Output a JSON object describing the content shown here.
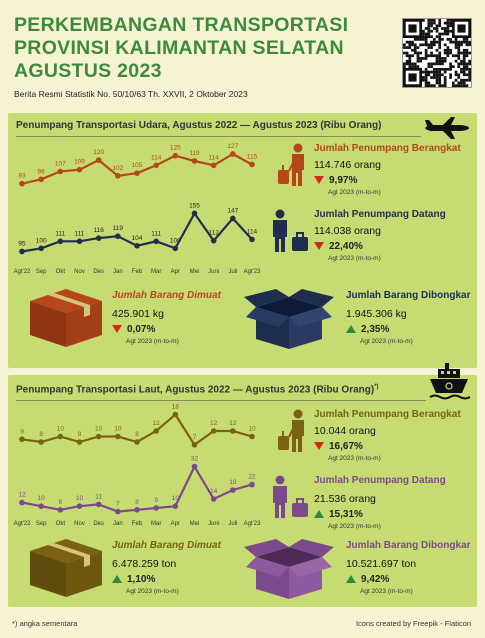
{
  "header": {
    "title_lines": [
      "PERKEMBANGAN TRANSPORTASI",
      "PROVINSI KALIMANTAN SELATAN",
      "AGUSTUS 2023"
    ],
    "subtitle": "Berita Resmi Statistik No. 50/10/63 Th. XXVII, 2 Oktober 2023"
  },
  "colors": {
    "title_green": "#3d8a3a",
    "panel_bg": "#c6dc73",
    "air_departure": "#b5471a",
    "air_arrival": "#1f2d50",
    "sea_departure": "#7a6212",
    "sea_arrival": "#7c4a8c",
    "down_red": "#d12a1a",
    "up_green": "#2f8a3a"
  },
  "air": {
    "title": "Penumpang Transportasi Udara, Agustus 2022 — Agustus 2023 (Ribu Orang)",
    "icon": "airplane-icon",
    "departure": {
      "label": "Jumlah Penumpang Berangkat",
      "value": "114.746 orang",
      "pct": "9,97%",
      "direction": "down",
      "note": "Agt 2023 (m-to-m)",
      "icon": "traveler-luggage-icon"
    },
    "arrival": {
      "label": "Jumlah Penumpang Datang",
      "value": "114.038 orang",
      "pct": "22,40%",
      "direction": "down",
      "note": "Agt 2023 (m-to-m)",
      "icon": "businessman-suitcase-icon"
    },
    "goods_loaded": {
      "label": "Jumlah Barang Dimuat",
      "value": "425.901 kg",
      "pct": "0,07%",
      "direction": "down",
      "note": "Agt 2023 (m-to-m)",
      "icon": "closed-box-icon"
    },
    "goods_unloaded": {
      "label": "Jumlah Barang Dibongkar",
      "value": "1.945.306 kg",
      "pct": "2,35%",
      "direction": "up",
      "note": "Agt 2023 (m-to-m)",
      "icon": "open-box-icon"
    }
  },
  "sea": {
    "title": "Penumpang Transportasi Laut, Agustus 2022 — Agustus 2023 (Ribu Orang)",
    "title_mark": "*)",
    "icon": "ship-icon",
    "departure": {
      "label": "Jumlah Penumpang Berangkat",
      "value": "10.044 orang",
      "pct": "16,67%",
      "direction": "down",
      "note": "Agt 2023 (m-to-m)",
      "icon": "traveler-luggage-icon"
    },
    "arrival": {
      "label": "Jumlah Penumpang Datang",
      "value": "21.536 orang",
      "pct": "15,31%",
      "direction": "up",
      "note": "Agt 2023 (m-to-m)",
      "icon": "businessman-suitcase-icon"
    },
    "goods_loaded": {
      "label": "Jumlah Barang Dimuat",
      "value": "6.478.259 ton",
      "pct": "1,10%",
      "direction": "up",
      "note": "Agt 2023 (m-to-m)",
      "icon": "closed-box-icon"
    },
    "goods_unloaded": {
      "label": "Jumlah Barang Dibongkar",
      "value": "10.521.697 ton",
      "pct": "9,42%",
      "direction": "up",
      "note": "Agt 2023 (m-to-m)",
      "icon": "open-box-icon"
    }
  },
  "footer": {
    "note": "*) angka sementara",
    "credit": "Icons created by Freepik - Flaticon"
  },
  "chart_data": [
    {
      "type": "line",
      "panel": "air",
      "categories": [
        "Agt'22",
        "Sep",
        "Okt",
        "Nov",
        "Des",
        "Jan",
        "Feb",
        "Mar",
        "Apr",
        "Mei",
        "Juni",
        "Juli",
        "Agt'23"
      ],
      "series": [
        {
          "name": "",
          "values": [
            93,
            98,
            107,
            109,
            120,
            102,
            105,
            114,
            125,
            119,
            114,
            127,
            115
          ]
        },
        {
          "name": "",
          "values": [
            95,
            100,
            111,
            111,
            116,
            119,
            104,
            111,
            100,
            155,
            112,
            147,
            114
          ]
        }
      ]
    },
    {
      "type": "line",
      "panel": "sea",
      "categories": [
        "Agt'22",
        "Sep",
        "Okt",
        "Nov",
        "Des",
        "Jan",
        "Feb",
        "Mar",
        "Apr",
        "Mei",
        "Juni",
        "Juli",
        "Agt'23"
      ],
      "series": [
        {
          "name": "",
          "values": [
            9,
            8,
            10,
            8,
            10,
            10,
            8,
            12,
            18,
            7,
            12,
            12,
            10
          ]
        },
        {
          "name": "",
          "values": [
            12,
            10,
            8,
            10,
            11,
            7,
            8,
            9,
            10,
            32,
            14,
            19,
            22
          ]
        }
      ]
    }
  ]
}
